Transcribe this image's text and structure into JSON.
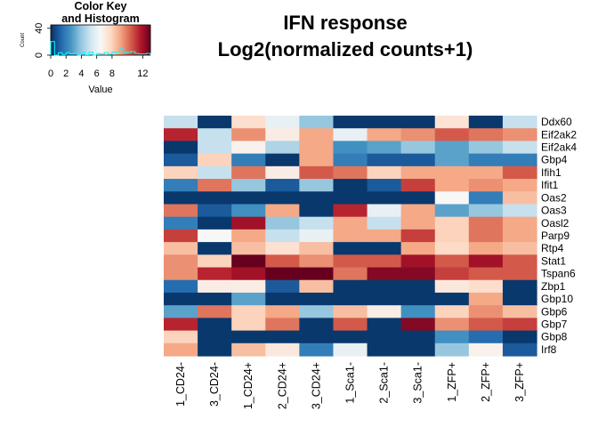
{
  "chart_data": {
    "type": "heatmap",
    "title": [
      "IFN response",
      "Log2(normalized counts+1)"
    ],
    "rows": [
      "Ddx60",
      "Eif2ak2",
      "Eif2ak4",
      "Gbp4",
      "Ifih1",
      "Ifit1",
      "Oas2",
      "Oas3",
      "Oasl2",
      "Parp9",
      "Rtp4",
      "Stat1",
      "Tspan6",
      "Zbp1",
      "Gbp10",
      "Gbp6",
      "Gbp7",
      "Gbp8",
      "Irf8"
    ],
    "columns": [
      "1_CD24-",
      "3_CD24-",
      "1_CD24+",
      "2_CD24+",
      "3_CD24+",
      "1_Sca1-",
      "2_Sca1-",
      "3_Sca1-",
      "1_ZFP+",
      "2_ZFP+",
      "3_ZFP+"
    ],
    "values": [
      [
        5.0,
        0.2,
        7.6,
        6.0,
        4.0,
        0.2,
        0.2,
        0.2,
        7.4,
        0.2,
        5.0
      ],
      [
        11.5,
        5.0,
        9.5,
        7.0,
        9.0,
        6.0,
        9.0,
        9.5,
        10.5,
        10.0,
        9.5
      ],
      [
        0.2,
        5.0,
        6.8,
        4.5,
        9.0,
        2.5,
        3.0,
        4.0,
        3.0,
        4.0,
        5.0
      ],
      [
        1.0,
        8.0,
        2.0,
        0.2,
        9.0,
        2.0,
        1.0,
        1.0,
        3.0,
        2.0,
        2.0
      ],
      [
        8.0,
        5.0,
        10.0,
        7.0,
        10.5,
        10.0,
        8.0,
        9.0,
        9.0,
        9.0,
        10.5
      ],
      [
        2.0,
        10.0,
        4.0,
        1.0,
        4.0,
        0.2,
        1.0,
        11.0,
        9.0,
        9.5,
        9.0
      ],
      [
        0.2,
        0.2,
        0.2,
        0.2,
        0.2,
        0.2,
        0.2,
        0.2,
        6.5,
        2.0,
        8.5
      ],
      [
        10.0,
        1.0,
        2.5,
        9.0,
        0.2,
        11.5,
        6.0,
        9.0,
        3.0,
        4.0,
        5.0
      ],
      [
        2.0,
        0.2,
        12.0,
        4.0,
        5.0,
        9.0,
        5.0,
        9.0,
        8.0,
        10.0,
        9.0
      ],
      [
        11.0,
        6.5,
        9.0,
        5.0,
        6.0,
        9.0,
        9.0,
        11.0,
        8.0,
        10.0,
        9.0
      ],
      [
        8.5,
        0.2,
        8.5,
        7.5,
        8.5,
        0.2,
        0.2,
        9.0,
        7.8,
        9.0,
        8.5
      ],
      [
        9.5,
        8.0,
        13.0,
        10.5,
        9.5,
        10.5,
        10.5,
        12.0,
        10.5,
        12.0,
        10.5
      ],
      [
        9.5,
        11.5,
        12.0,
        13.0,
        13.0,
        10.0,
        12.5,
        12.5,
        11.0,
        10.5,
        10.5
      ],
      [
        1.5,
        7.0,
        7.0,
        1.0,
        8.5,
        0.2,
        0.2,
        0.2,
        7.2,
        7.7,
        0.2
      ],
      [
        0.2,
        0.2,
        3.0,
        0.2,
        0.2,
        0.2,
        0.2,
        0.2,
        0.2,
        9.0,
        0.2
      ],
      [
        3.0,
        10.0,
        8.0,
        9.0,
        4.0,
        8.5,
        7.0,
        2.5,
        8.0,
        9.5,
        8.5
      ],
      [
        11.5,
        0.2,
        8.0,
        10.0,
        0.2,
        10.5,
        0.2,
        12.5,
        9.5,
        10.5,
        11.0
      ],
      [
        8.0,
        0.2,
        0.2,
        0.2,
        0.2,
        0.2,
        0.2,
        0.2,
        2.5,
        1.5,
        0.2
      ],
      [
        9.0,
        0.2,
        8.5,
        7.2,
        2.0,
        6.0,
        0.2,
        0.2,
        4.0,
        6.8,
        1.0
      ]
    ],
    "color_scale": [
      "#053061",
      "#2166ac",
      "#4393c3",
      "#92c5de",
      "#d1e5f0",
      "#f7f7f7",
      "#fddbc7",
      "#f4a582",
      "#d6604d",
      "#b2182b",
      "#67001f"
    ],
    "color_key": {
      "title": [
        "Color Key",
        "and Histogram"
      ],
      "xlabel": "Value",
      "ylabel": "Count",
      "xticks": [
        0,
        2,
        4,
        6,
        8,
        12
      ],
      "yticks": [
        0,
        40
      ],
      "range": [
        0,
        13
      ],
      "histogram_color": "#00ffff"
    }
  }
}
